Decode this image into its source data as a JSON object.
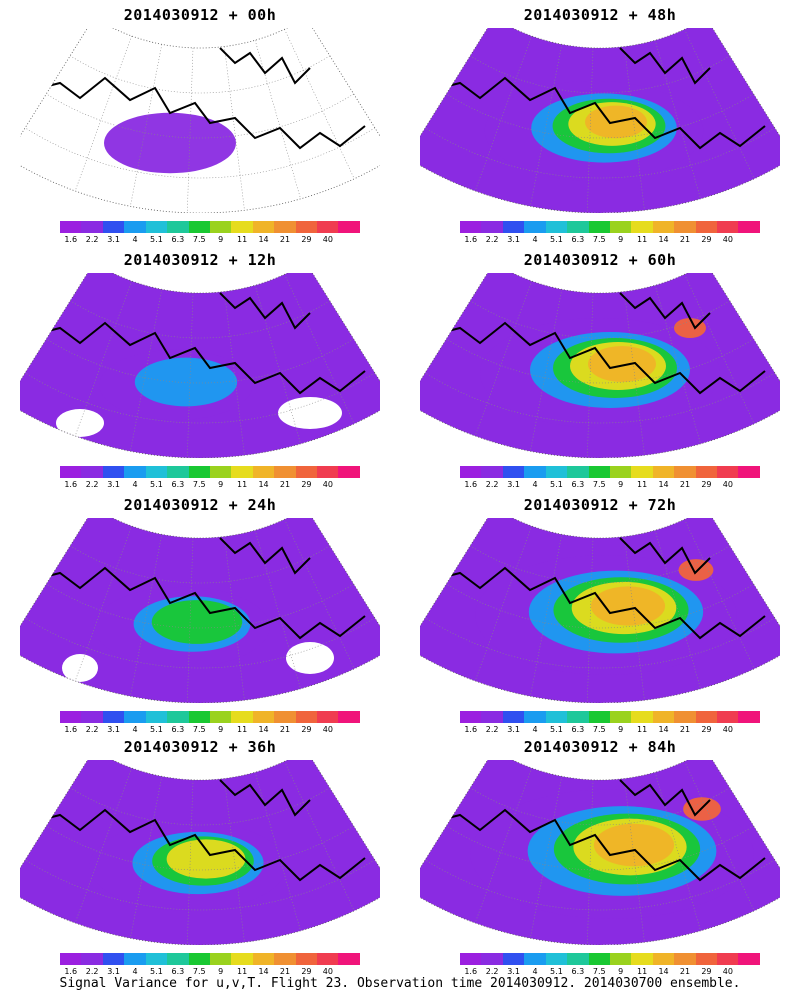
{
  "panels": [
    {
      "title": "2014030912 + 00h",
      "level": 0
    },
    {
      "title": "2014030912 + 48h",
      "level": 4
    },
    {
      "title": "2014030912 + 12h",
      "level": 1
    },
    {
      "title": "2014030912 + 60h",
      "level": 5
    },
    {
      "title": "2014030912 + 24h",
      "level": 2
    },
    {
      "title": "2014030912 + 72h",
      "level": 6
    },
    {
      "title": "2014030912 + 36h",
      "level": 3
    },
    {
      "title": "2014030912 + 84h",
      "level": 7
    }
  ],
  "colorbar": {
    "colors": [
      "#9b1fe0",
      "#8a2be2",
      "#3050f0",
      "#1a9cf0",
      "#20c0d8",
      "#1ec89a",
      "#19c832",
      "#9ad21e",
      "#e6dc1e",
      "#f0b428",
      "#f09032",
      "#f0643c",
      "#f03c50",
      "#f0147a"
    ],
    "labels": [
      "1.6",
      "2.2",
      "3.1",
      "4",
      "5.1",
      "6.3",
      "7.5",
      "9",
      "11",
      "14",
      "21",
      "29",
      "40"
    ]
  },
  "footer": "Signal Variance for u,v,T. Flight 23. Observation time 2014030912. 2014030700 ensemble."
}
